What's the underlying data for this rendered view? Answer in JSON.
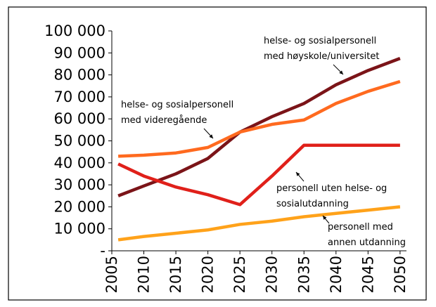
{
  "chart_data": {
    "type": "line",
    "x": [
      2006,
      2010,
      2015,
      2020,
      2025,
      2030,
      2035,
      2040,
      2045,
      2050
    ],
    "series": [
      {
        "name": "helse- og sosialpersonell med høyskole/universitet",
        "color": "#7b1418",
        "values": [
          25000,
          29500,
          35000,
          42000,
          54000,
          61000,
          67000,
          75500,
          82000,
          87500
        ]
      },
      {
        "name": "helse- og sosialpersonell med videregående",
        "color": "#ff6a1f",
        "values": [
          43000,
          43500,
          44500,
          47000,
          54000,
          57500,
          59500,
          67000,
          72500,
          77000
        ]
      },
      {
        "name": "personell uten helse- og sosialutdanning",
        "color": "#e0201a",
        "values": [
          39500,
          34000,
          29000,
          25500,
          21000,
          34000,
          48000,
          48000,
          48000,
          48000
        ]
      },
      {
        "name": "personell med annen utdanning",
        "color": "#ffa21a",
        "values": [
          5000,
          6500,
          8000,
          9500,
          12000,
          13500,
          15500,
          17000,
          18500,
          20000
        ]
      }
    ],
    "annotations": [
      [
        "helse- og sosialpersonell",
        "med høyskole/universitet"
      ],
      [
        "helse- og sosialpersonell",
        "med videregående"
      ],
      [
        "personell uten helse- og",
        "sosialutdanning"
      ],
      [
        "personell med",
        "annen utdanning"
      ]
    ],
    "xlim": [
      2005,
      2051
    ],
    "xticks": [
      2005,
      2010,
      2015,
      2020,
      2025,
      2030,
      2035,
      2040,
      2045,
      2050
    ],
    "ylim": [
      0,
      100000
    ],
    "yticks": [
      {
        "value": 0,
        "label": "-"
      },
      {
        "value": 10000,
        "label": "10 000"
      },
      {
        "value": 20000,
        "label": "20 000"
      },
      {
        "value": 30000,
        "label": "30 000"
      },
      {
        "value": 40000,
        "label": "40 000"
      },
      {
        "value": 50000,
        "label": "50 000"
      },
      {
        "value": 60000,
        "label": "60 000"
      },
      {
        "value": 70000,
        "label": "70 000"
      },
      {
        "value": 80000,
        "label": "80 000"
      },
      {
        "value": 90000,
        "label": "90 000"
      },
      {
        "value": 100000,
        "label": "100 000"
      }
    ],
    "grid": false
  }
}
